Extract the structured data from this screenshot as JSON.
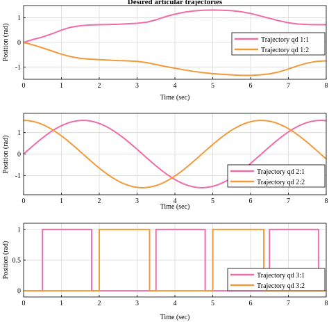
{
  "chart_data": [
    {
      "type": "line",
      "title": "Desired articular trajectories",
      "xlabel": "Time (sec)",
      "ylabel": "Position (rad)",
      "xlim": [
        0,
        8
      ],
      "ylim": [
        -1.5,
        1.5
      ],
      "xticks": [
        "0",
        "1",
        "2",
        "3",
        "4",
        "5",
        "6",
        "7",
        "8"
      ],
      "yticks": [
        "1",
        "0",
        "-1"
      ],
      "ytick_values": [
        1,
        0,
        -1
      ],
      "grid": true,
      "legend_position": "right",
      "series": [
        {
          "name": "Trajectory qd 1:1",
          "color": "#f06ca8",
          "x": [
            0,
            0.25,
            0.5,
            0.75,
            1,
            1.25,
            1.5,
            1.75,
            2,
            2.25,
            2.5,
            2.75,
            3,
            3.25,
            3.5,
            3.75,
            4,
            4.25,
            4.5,
            4.75,
            5,
            5.25,
            5.5,
            5.75,
            6,
            6.25,
            6.5,
            6.75,
            7,
            7.25,
            7.5,
            7.75,
            8
          ],
          "y": [
            0,
            0.12,
            0.22,
            0.35,
            0.5,
            0.62,
            0.68,
            0.71,
            0.72,
            0.73,
            0.74,
            0.76,
            0.78,
            0.82,
            0.92,
            1.05,
            1.15,
            1.23,
            1.28,
            1.31,
            1.32,
            1.31,
            1.29,
            1.25,
            1.18,
            1.08,
            0.98,
            0.88,
            0.8,
            0.75,
            0.73,
            0.72,
            0.72
          ]
        },
        {
          "name": "Trajectory qd 1:2",
          "color": "#f39a38",
          "x": [
            0,
            0.25,
            0.5,
            0.75,
            1,
            1.25,
            1.5,
            1.75,
            2,
            2.25,
            2.5,
            2.75,
            3,
            3.25,
            3.5,
            3.75,
            4,
            4.25,
            4.5,
            4.75,
            5,
            5.25,
            5.5,
            5.75,
            6,
            6.25,
            6.5,
            6.75,
            7,
            7.25,
            7.5,
            7.75,
            8
          ],
          "y": [
            0,
            -0.1,
            -0.22,
            -0.35,
            -0.48,
            -0.58,
            -0.65,
            -0.68,
            -0.7,
            -0.72,
            -0.74,
            -0.75,
            -0.77,
            -0.82,
            -0.9,
            -0.98,
            -1.05,
            -1.12,
            -1.18,
            -1.23,
            -1.27,
            -1.3,
            -1.32,
            -1.34,
            -1.34,
            -1.32,
            -1.28,
            -1.2,
            -1.08,
            -0.95,
            -0.84,
            -0.77,
            -0.75
          ]
        }
      ]
    },
    {
      "type": "line",
      "title": "",
      "xlabel": "Time (sec)",
      "ylabel": "Position (rad)",
      "xlim": [
        0,
        8
      ],
      "ylim": [
        -1.9,
        1.9
      ],
      "xticks": [
        "0",
        "1",
        "2",
        "3",
        "4",
        "5",
        "6",
        "7",
        "8"
      ],
      "yticks": [
        "1",
        "0",
        "-1"
      ],
      "ytick_values": [
        1,
        0,
        -1
      ],
      "grid": true,
      "legend_position": "bottom-right",
      "series": [
        {
          "name": "Trajectory qd 2:1",
          "color": "#f06ca8",
          "function": "1.571*sin(t)"
        },
        {
          "name": "Trajectory qd 2:2",
          "color": "#f39a38",
          "function": "1.571*cos(t)"
        }
      ]
    },
    {
      "type": "line",
      "title": "",
      "xlabel": "Time (sec)",
      "ylabel": "Position (rad)",
      "xlim": [
        0,
        8
      ],
      "ylim": [
        -0.1,
        1.1
      ],
      "xticks": [
        "0",
        "1",
        "2",
        "3",
        "4",
        "5",
        "6",
        "7",
        "8"
      ],
      "yticks": [
        "1",
        "0.5",
        "0"
      ],
      "ytick_values": [
        1,
        0.5,
        0
      ],
      "grid": true,
      "legend_position": "bottom-right",
      "series": [
        {
          "name": "Trajectory qd 3:1",
          "color": "#f06ca8",
          "x": [
            0,
            0.5,
            0.5,
            1.8,
            1.8,
            3.5,
            3.5,
            4.8,
            4.8,
            6.5,
            6.5,
            7.8,
            7.8,
            8
          ],
          "y": [
            0,
            0,
            1,
            1,
            0,
            0,
            1,
            1,
            0,
            0,
            1,
            1,
            0,
            0
          ]
        },
        {
          "name": "Trajectory qd 3:2",
          "color": "#f39a38",
          "x": [
            0,
            2.0,
            2.0,
            3.33,
            3.33,
            5.0,
            5.0,
            6.35,
            6.35,
            8
          ],
          "y": [
            0,
            0,
            1,
            1,
            0,
            0,
            1,
            1,
            0,
            0
          ]
        }
      ]
    }
  ]
}
